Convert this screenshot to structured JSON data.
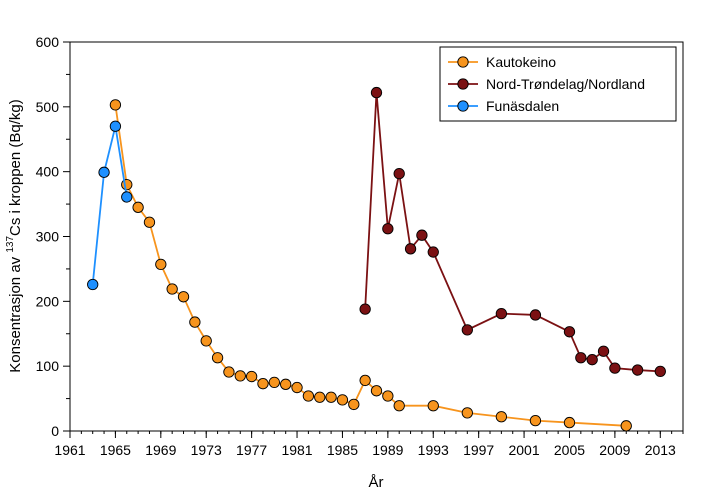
{
  "chart_data": {
    "type": "line",
    "xlabel": "År",
    "ylabel_prefix": "Konsentrasjon av ",
    "ylabel_sup": "137",
    "ylabel_suffix": "Cs i kroppen (Bq/kg)",
    "xlim": [
      1961,
      2015
    ],
    "ylim": [
      0,
      600
    ],
    "xticks": [
      1961,
      1965,
      1969,
      1973,
      1977,
      1981,
      1985,
      1989,
      1993,
      1997,
      2001,
      2005,
      2009,
      2013
    ],
    "yticks": [
      0,
      100,
      200,
      300,
      400,
      500,
      600
    ],
    "legend_position": "top-right",
    "grid": false,
    "series": [
      {
        "name": "Kautokeino",
        "color": "#F7941D",
        "points": [
          [
            1965,
            503
          ],
          [
            1966,
            380
          ],
          [
            1967,
            345
          ],
          [
            1968,
            322
          ],
          [
            1969,
            257
          ],
          [
            1970,
            219
          ],
          [
            1971,
            207
          ],
          [
            1972,
            168
          ],
          [
            1973,
            139
          ],
          [
            1974,
            113
          ],
          [
            1975,
            91
          ],
          [
            1976,
            85
          ],
          [
            1977,
            84
          ],
          [
            1978,
            73
          ],
          [
            1979,
            75
          ],
          [
            1980,
            72
          ],
          [
            1981,
            67
          ],
          [
            1982,
            54
          ],
          [
            1983,
            52
          ],
          [
            1984,
            52
          ],
          [
            1985,
            48
          ],
          [
            1986,
            41
          ],
          [
            1987,
            78
          ],
          [
            1988,
            62
          ],
          [
            1989,
            54
          ],
          [
            1990,
            39
          ],
          [
            1993,
            39
          ],
          [
            1996,
            28
          ],
          [
            1999,
            22
          ],
          [
            2002,
            16
          ],
          [
            2005,
            13
          ],
          [
            2010,
            8
          ]
        ]
      },
      {
        "name": "Nord-Trøndelag/Nordland",
        "color": "#7B1113",
        "points": [
          [
            1987,
            188
          ],
          [
            1988,
            522
          ],
          [
            1989,
            312
          ],
          [
            1990,
            397
          ],
          [
            1991,
            281
          ],
          [
            1992,
            302
          ],
          [
            1993,
            276
          ],
          [
            1996,
            156
          ],
          [
            1999,
            181
          ],
          [
            2002,
            179
          ],
          [
            2005,
            153
          ],
          [
            2006,
            113
          ],
          [
            2007,
            110
          ],
          [
            2008,
            123
          ],
          [
            2009,
            97
          ],
          [
            2011,
            94
          ],
          [
            2013,
            92
          ]
        ]
      },
      {
        "name": "Funäsdalen",
        "color": "#1E90FF",
        "points": [
          [
            1963,
            226
          ],
          [
            1964,
            399
          ],
          [
            1965,
            470
          ],
          [
            1966,
            361
          ]
        ]
      }
    ]
  }
}
